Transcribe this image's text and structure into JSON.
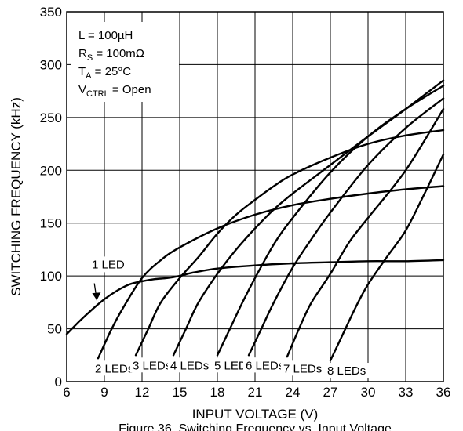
{
  "chart_data": {
    "type": "line",
    "xlabel": "INPUT VOLTAGE (V)",
    "ylabel": "SWITCHING FREQUENCY (kHz)",
    "caption": "Figure 36. Switching Frequency vs. Input Voltage",
    "xlim": [
      6,
      36
    ],
    "ylim": [
      0,
      350
    ],
    "x_ticks": [
      "6",
      "9",
      "12",
      "15",
      "18",
      "21",
      "24",
      "27",
      "30",
      "33",
      "36"
    ],
    "y_ticks": [
      "0",
      "50",
      "100",
      "150",
      "200",
      "250",
      "300",
      "350"
    ],
    "grid": true,
    "conditions": [
      {
        "main": "L = 100µH",
        "sub": "",
        "tail": ""
      },
      {
        "main": "R",
        "sub": "S",
        "tail": " = 100mΩ"
      },
      {
        "main": "T",
        "sub": "A",
        "tail": " = 25°C"
      },
      {
        "main": "V",
        "sub": "CTRL",
        "tail": " = Open"
      }
    ],
    "series": [
      {
        "name": "1 LED",
        "x": [
          6,
          7,
          8,
          9,
          10,
          11,
          12,
          13,
          14,
          15,
          16,
          18,
          21,
          24,
          27,
          30,
          33,
          36
        ],
        "y": [
          45,
          57,
          68,
          78,
          86,
          92,
          95,
          97,
          98,
          100,
          103,
          107,
          110,
          112,
          113,
          114,
          114,
          115
        ]
      },
      {
        "name": "2 LEDs",
        "x": [
          8.5,
          9.5,
          10.5,
          12,
          13.5,
          15,
          18,
          21,
          24,
          27,
          30,
          33,
          36
        ],
        "y": [
          22,
          48,
          70,
          98,
          115,
          127,
          145,
          158,
          167,
          173,
          178,
          182,
          185
        ]
      },
      {
        "name": "3 LEDs",
        "x": [
          11.5,
          12.5,
          13.5,
          15,
          16.5,
          18,
          19.5,
          21,
          22.5,
          24,
          27,
          30,
          33,
          36
        ],
        "y": [
          25,
          50,
          75,
          98,
          118,
          140,
          158,
          172,
          185,
          196,
          212,
          225,
          233,
          238
        ]
      },
      {
        "name": "4 LEDs",
        "x": [
          14.5,
          15.5,
          16.5,
          18,
          19.5,
          21,
          22.5,
          24,
          27,
          30,
          33,
          36
        ],
        "y": [
          25,
          50,
          75,
          102,
          125,
          145,
          163,
          178,
          205,
          232,
          258,
          285
        ]
      },
      {
        "name": "5 LEDs",
        "x": [
          18,
          19,
          20,
          21,
          22.5,
          24,
          27,
          30,
          33,
          36
        ],
        "y": [
          25,
          50,
          75,
          98,
          130,
          155,
          198,
          232,
          258,
          280
        ]
      },
      {
        "name": "6 LEDs",
        "x": [
          20.5,
          21.5,
          22.5,
          24,
          25.5,
          27,
          30,
          33,
          36
        ],
        "y": [
          25,
          50,
          75,
          108,
          135,
          160,
          205,
          240,
          268
        ]
      },
      {
        "name": "7 LEDs",
        "x": [
          23.5,
          24.5,
          25.5,
          27,
          28.5,
          30,
          33,
          36
        ],
        "y": [
          22,
          50,
          75,
          102,
          132,
          155,
          200,
          258
        ]
      },
      {
        "name": "8 LEDs",
        "x": [
          27,
          28,
          29,
          30,
          31.5,
          33,
          34.5,
          36
        ],
        "y": [
          20,
          45,
          70,
          92,
          118,
          143,
          178,
          215
        ]
      }
    ],
    "annotations": [
      {
        "text": "1 LED",
        "series": "1 LED",
        "arrow": true
      },
      {
        "text": "2 LEDs",
        "series": "2 LEDs"
      },
      {
        "text": "3 LEDs",
        "series": "3 LEDs"
      },
      {
        "text": "4 LEDs",
        "series": "4 LEDs"
      },
      {
        "text": "5 LEDs",
        "series": "5 LEDs"
      },
      {
        "text": "6 LEDs",
        "series": "6 LEDs"
      },
      {
        "text": "7 LEDs",
        "series": "7 LEDs"
      },
      {
        "text": "8 LEDs",
        "series": "8 LEDs"
      }
    ]
  }
}
